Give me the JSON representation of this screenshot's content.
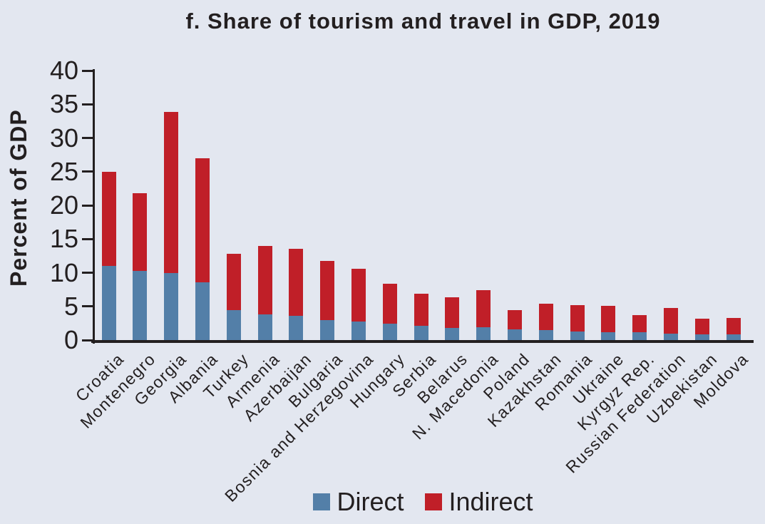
{
  "colors": {
    "background": "#e3e7f0",
    "ink": "#231f20",
    "direct": "#537fa8",
    "indirect": "#c01f28"
  },
  "chart_data": {
    "type": "bar",
    "stacked": true,
    "title": "f. Share of tourism and travel in GDP, 2019",
    "xlabel": "",
    "ylabel": "Percent of GDP",
    "ylim": [
      0,
      40
    ],
    "yticks": [
      0,
      5,
      10,
      15,
      20,
      25,
      30,
      35,
      40
    ],
    "grid": false,
    "legend_position": "bottom-center",
    "categories": [
      "Croatia",
      "Montenegro",
      "Georgia",
      "Albania",
      "Turkey",
      "Armenia",
      "Azerbaijan",
      "Bulgaria",
      "Bosnia and Herzegovina",
      "Hungary",
      "Serbia",
      "Belarus",
      "N. Macedonia",
      "Poland",
      "Kazakhstan",
      "Romania",
      "Ukraine",
      "Kyrgyz Rep.",
      "Russian Federation",
      "Uzbekistan",
      "Moldova"
    ],
    "series": [
      {
        "name": "Direct",
        "color": "#537fa8",
        "values": [
          11.0,
          10.3,
          9.9,
          8.6,
          4.4,
          3.8,
          3.6,
          3.0,
          2.8,
          2.4,
          2.1,
          1.8,
          1.9,
          1.6,
          1.5,
          1.3,
          1.2,
          1.2,
          1.0,
          0.9,
          0.8
        ]
      },
      {
        "name": "Indirect",
        "color": "#c01f28",
        "values": [
          14.0,
          11.5,
          24.0,
          18.4,
          8.4,
          10.2,
          9.9,
          8.8,
          7.8,
          6.0,
          4.8,
          4.5,
          5.5,
          2.8,
          3.9,
          3.9,
          3.9,
          2.5,
          3.8,
          2.3,
          2.5
        ]
      }
    ]
  }
}
